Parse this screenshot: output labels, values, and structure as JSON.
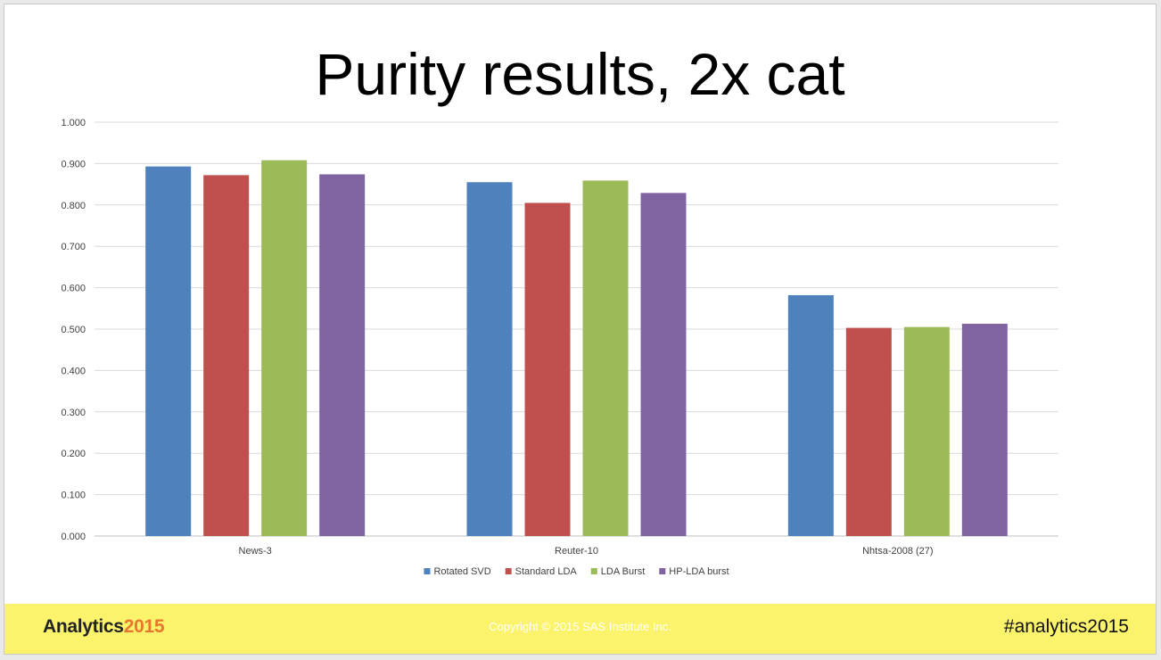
{
  "slide": {
    "title": "Purity results, 2x cat"
  },
  "footer": {
    "logo_word": "Analytics",
    "logo_year": "2015",
    "copyright": "Copyright © 2015 SAS Institute Inc.",
    "hashtag": "#analytics2015"
  },
  "chart_data": {
    "type": "bar",
    "title": "",
    "xlabel": "",
    "ylabel": "",
    "ylim": [
      0,
      1.0
    ],
    "yticks": [
      "0.000",
      "0.100",
      "0.200",
      "0.300",
      "0.400",
      "0.500",
      "0.600",
      "0.700",
      "0.800",
      "0.900",
      "1.000"
    ],
    "grid": true,
    "legend_position": "bottom",
    "categories": [
      "News-3",
      "Reuter-10",
      "Nhtsa-2008 (27)"
    ],
    "series": [
      {
        "name": "Rotated SVD",
        "color": "#4f81bd",
        "values": [
          0.893,
          0.855,
          0.582
        ]
      },
      {
        "name": "Standard LDA",
        "color": "#c0504d",
        "values": [
          0.872,
          0.805,
          0.503
        ]
      },
      {
        "name": "LDA Burst",
        "color": "#9bbb59",
        "values": [
          0.908,
          0.859,
          0.505
        ]
      },
      {
        "name": "HP-LDA burst",
        "color": "#8064a2",
        "values": [
          0.874,
          0.829,
          0.513
        ]
      }
    ]
  }
}
